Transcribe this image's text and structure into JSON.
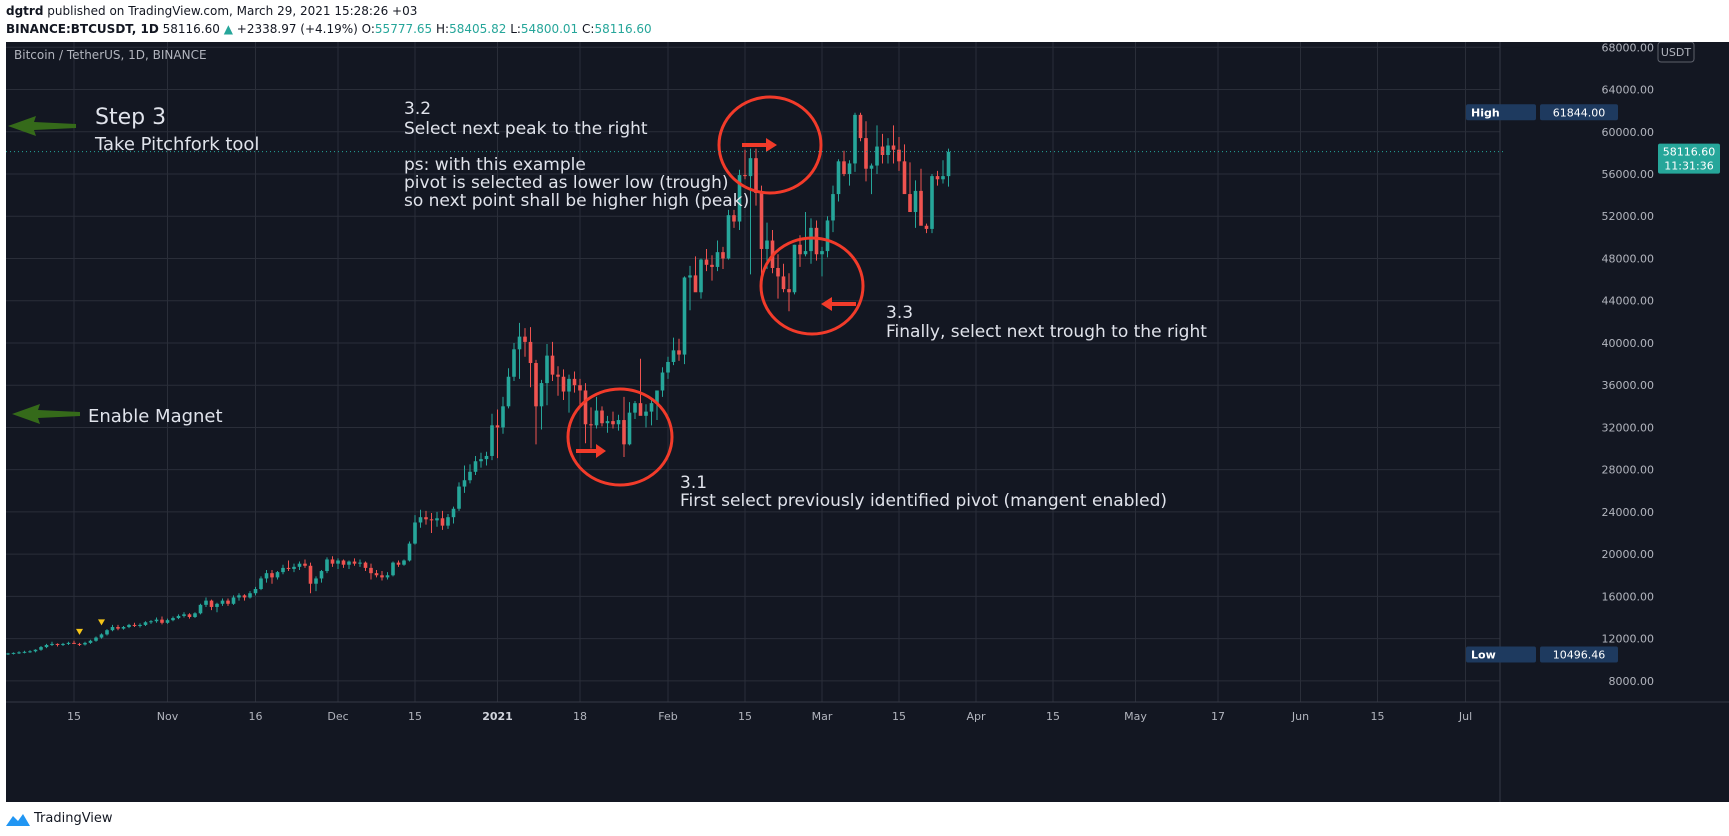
{
  "header": {
    "author": "dgtrd",
    "published": "published on TradingView.com, March 29, 2021 15:28:26 +03",
    "symbol": "BINANCE:BTCUSDT, 1D",
    "last": "58116.60",
    "change": "+2338.97 (+4.19%)",
    "o_label": "O:",
    "o": "55777.65",
    "h_label": "H:",
    "h": "58405.82",
    "l_label": "L:",
    "l": "54800.01",
    "c_label": "C:",
    "c": "58116.60"
  },
  "footer": {
    "brand": "TradingView"
  },
  "colors": {
    "up": "#26a69a",
    "down": "#ef5350",
    "background": "#131722",
    "grid": "#2a2e39",
    "annotation": "#e0e3eb",
    "circle": "#f23b2a",
    "green_arrow": "#356a1a",
    "high_badge": "#1e3a5f",
    "price_badge": "#26a69a"
  },
  "chart_data": {
    "type": "candlestick",
    "title": "Bitcoin / TetherUS, 1D, BINANCE",
    "currency": "USDT",
    "x_labels": [
      "15",
      "Nov",
      "16",
      "Dec",
      "15",
      "2021",
      "18",
      "Feb",
      "15",
      "Mar",
      "15",
      "Apr",
      "15",
      "May",
      "17",
      "Jun",
      "15",
      "Jul"
    ],
    "y_ticks": [
      8000,
      12000,
      16000,
      20000,
      24000,
      28000,
      32000,
      36000,
      40000,
      44000,
      48000,
      52000,
      56000,
      60000,
      64000,
      68000
    ],
    "ylim": [
      6000,
      68500
    ],
    "grid": true,
    "high": {
      "label": "High",
      "value": "61844.00"
    },
    "low": {
      "label": "Low",
      "value": "10496.46"
    },
    "current_price": {
      "value": "58116.60",
      "countdown": "11:31:36"
    },
    "candles_ohlc": [
      [
        10550,
        10650,
        10450,
        10600
      ],
      [
        10600,
        10700,
        10500,
        10650
      ],
      [
        10650,
        10800,
        10550,
        10700
      ],
      [
        10700,
        10850,
        10600,
        10750
      ],
      [
        10750,
        10900,
        10650,
        10800
      ],
      [
        10800,
        11000,
        10700,
        10950
      ],
      [
        10950,
        11300,
        10850,
        11200
      ],
      [
        11200,
        11500,
        11100,
        11400
      ],
      [
        11400,
        11700,
        11300,
        11500
      ],
      [
        11500,
        11550,
        11250,
        11400
      ],
      [
        11400,
        11600,
        11300,
        11500
      ],
      [
        11500,
        11700,
        11400,
        11600
      ],
      [
        11600,
        11800,
        11500,
        11500
      ],
      [
        11500,
        11600,
        11300,
        11450
      ],
      [
        11450,
        11700,
        11350,
        11600
      ],
      [
        11600,
        11900,
        11500,
        11800
      ],
      [
        11800,
        12200,
        11700,
        12100
      ],
      [
        12100,
        12500,
        12000,
        12400
      ],
      [
        12400,
        12900,
        12300,
        12800
      ],
      [
        12800,
        13300,
        12700,
        13100
      ],
      [
        13100,
        13300,
        12800,
        12950
      ],
      [
        12950,
        13200,
        12850,
        13100
      ],
      [
        13100,
        13400,
        13000,
        13300
      ],
      [
        13300,
        13500,
        13100,
        13200
      ],
      [
        13200,
        13450,
        13050,
        13300
      ],
      [
        13300,
        13650,
        13200,
        13550
      ],
      [
        13550,
        13750,
        13400,
        13650
      ],
      [
        13650,
        14000,
        13500,
        13800
      ],
      [
        13800,
        14100,
        13350,
        13500
      ],
      [
        13500,
        13900,
        13400,
        13750
      ],
      [
        13750,
        14100,
        13650,
        13950
      ],
      [
        13950,
        14300,
        13850,
        14150
      ],
      [
        14150,
        14500,
        14000,
        14300
      ],
      [
        14300,
        14400,
        13900,
        14050
      ],
      [
        14050,
        14500,
        13950,
        14400
      ],
      [
        14400,
        15300,
        14300,
        15200
      ],
      [
        15200,
        15900,
        15000,
        15600
      ],
      [
        15600,
        15700,
        14700,
        15000
      ],
      [
        15000,
        15400,
        14500,
        15300
      ],
      [
        15300,
        15800,
        15100,
        15600
      ],
      [
        15600,
        15800,
        15100,
        15300
      ],
      [
        15300,
        16100,
        15200,
        15900
      ],
      [
        15900,
        16300,
        15600,
        16100
      ],
      [
        16100,
        16200,
        15600,
        15900
      ],
      [
        15900,
        16500,
        15800,
        16300
      ],
      [
        16300,
        16900,
        16100,
        16700
      ],
      [
        16700,
        17900,
        16600,
        17700
      ],
      [
        17700,
        18500,
        17300,
        18200
      ],
      [
        18200,
        18500,
        17200,
        17800
      ],
      [
        17800,
        18400,
        17600,
        18300
      ],
      [
        18300,
        19000,
        18100,
        18700
      ],
      [
        18700,
        19400,
        18400,
        18600
      ],
      [
        18600,
        19100,
        18300,
        18800
      ],
      [
        18800,
        19300,
        18500,
        19100
      ],
      [
        19100,
        19500,
        18700,
        18900
      ],
      [
        18900,
        19200,
        16300,
        17200
      ],
      [
        17200,
        17900,
        16500,
        17700
      ],
      [
        17700,
        18500,
        17300,
        18400
      ],
      [
        18400,
        19700,
        18200,
        19500
      ],
      [
        19500,
        19800,
        18800,
        19100
      ],
      [
        19100,
        19600,
        18600,
        19400
      ],
      [
        19400,
        19500,
        18700,
        19000
      ],
      [
        19000,
        19400,
        18600,
        19300
      ],
      [
        19300,
        19600,
        18900,
        19100
      ],
      [
        19100,
        19500,
        18800,
        19200
      ],
      [
        19200,
        19300,
        18400,
        18700
      ],
      [
        18700,
        19100,
        17600,
        18200
      ],
      [
        18200,
        18500,
        17800,
        18000
      ],
      [
        18000,
        18400,
        17500,
        17800
      ],
      [
        17800,
        18300,
        17600,
        18000
      ],
      [
        18000,
        19300,
        17900,
        19200
      ],
      [
        19200,
        19400,
        18800,
        19000
      ],
      [
        19000,
        19500,
        18900,
        19400
      ],
      [
        19400,
        21200,
        19300,
        21000
      ],
      [
        21000,
        23700,
        20900,
        23000
      ],
      [
        23000,
        24200,
        22500,
        23500
      ],
      [
        23500,
        24100,
        22800,
        23300
      ],
      [
        23300,
        23900,
        22000,
        23200
      ],
      [
        23200,
        24000,
        22600,
        23400
      ],
      [
        23400,
        24100,
        22300,
        22700
      ],
      [
        22700,
        23800,
        22400,
        23500
      ],
      [
        23500,
        24500,
        22900,
        24300
      ],
      [
        24300,
        26800,
        24100,
        26400
      ],
      [
        26400,
        28400,
        25800,
        27000
      ],
      [
        27000,
        28500,
        26700,
        27800
      ],
      [
        27800,
        29300,
        27500,
        28800
      ],
      [
        28800,
        29600,
        28200,
        29000
      ],
      [
        29000,
        29700,
        28400,
        29300
      ],
      [
        29300,
        33300,
        28900,
        32200
      ],
      [
        32200,
        33700,
        29100,
        32000
      ],
      [
        32000,
        34900,
        31400,
        34000
      ],
      [
        34000,
        37600,
        33800,
        36800
      ],
      [
        36800,
        40000,
        36400,
        39400
      ],
      [
        39400,
        41900,
        36600,
        40600
      ],
      [
        40600,
        41400,
        38700,
        40100
      ],
      [
        40100,
        41500,
        35800,
        38100
      ],
      [
        38100,
        38400,
        30400,
        34000
      ],
      [
        34000,
        36500,
        31800,
        36200
      ],
      [
        36200,
        39900,
        34100,
        38800
      ],
      [
        38800,
        40100,
        36400,
        37000
      ],
      [
        37000,
        37800,
        35000,
        36800
      ],
      [
        36800,
        37500,
        34600,
        35400
      ],
      [
        35400,
        37000,
        33400,
        36600
      ],
      [
        36600,
        37300,
        35300,
        36000
      ],
      [
        36000,
        36600,
        33900,
        35500
      ],
      [
        35500,
        36200,
        30500,
        32300
      ],
      [
        32300,
        33900,
        30000,
        32200
      ],
      [
        32200,
        34900,
        31900,
        33600
      ],
      [
        33600,
        34000,
        32100,
        32400
      ],
      [
        32400,
        33100,
        31500,
        32600
      ],
      [
        32600,
        33500,
        31900,
        32300
      ],
      [
        32300,
        33200,
        31700,
        32700
      ],
      [
        32700,
        34900,
        29200,
        30400
      ],
      [
        30400,
        34400,
        30300,
        33400
      ],
      [
        33400,
        34500,
        32800,
        34300
      ],
      [
        34300,
        38500,
        33300,
        33100
      ],
      [
        33100,
        34200,
        32000,
        33500
      ],
      [
        33500,
        34800,
        32200,
        34300
      ],
      [
        34300,
        35400,
        32700,
        35500
      ],
      [
        35500,
        37700,
        34900,
        37200
      ],
      [
        37200,
        38700,
        36600,
        38200
      ],
      [
        38200,
        40500,
        37900,
        39300
      ],
      [
        39300,
        40400,
        38300,
        38900
      ],
      [
        38900,
        46300,
        38000,
        46200
      ],
      [
        46200,
        47300,
        43100,
        46400
      ],
      [
        46400,
        48200,
        45100,
        44800
      ],
      [
        44800,
        48000,
        44200,
        47900
      ],
      [
        47900,
        48900,
        46800,
        47400
      ],
      [
        47400,
        48300,
        45900,
        47200
      ],
      [
        47200,
        49700,
        46800,
        48600
      ],
      [
        48600,
        49100,
        47000,
        48000
      ],
      [
        48000,
        52600,
        47900,
        52100
      ],
      [
        52100,
        52600,
        50900,
        51500
      ],
      [
        51500,
        56400,
        50700,
        55900
      ],
      [
        55900,
        58300,
        55500,
        55800
      ],
      [
        55800,
        58400,
        46500,
        57500
      ],
      [
        57500,
        58400,
        53000,
        54200
      ],
      [
        54200,
        54900,
        45000,
        48900
      ],
      [
        48900,
        51400,
        47000,
        49700
      ],
      [
        49700,
        50700,
        46600,
        47100
      ],
      [
        47100,
        48400,
        44200,
        46300
      ],
      [
        46300,
        47500,
        44800,
        45100
      ],
      [
        45100,
        46600,
        43000,
        44800
      ],
      [
        44800,
        49300,
        44600,
        49300
      ],
      [
        49300,
        50200,
        47200,
        48400
      ],
      [
        48400,
        52400,
        48200,
        48700
      ],
      [
        48700,
        51800,
        47500,
        50900
      ],
      [
        50900,
        51600,
        47800,
        48400
      ],
      [
        48400,
        49100,
        46300,
        48700
      ],
      [
        48700,
        52000,
        48100,
        51600
      ],
      [
        51600,
        54900,
        50500,
        54100
      ],
      [
        54100,
        57400,
        53400,
        57200
      ],
      [
        57200,
        58200,
        55800,
        56000
      ],
      [
        56000,
        57300,
        54900,
        57000
      ],
      [
        57000,
        61800,
        56200,
        61600
      ],
      [
        61600,
        61800,
        59100,
        59400
      ],
      [
        59400,
        61000,
        55300,
        56500
      ],
      [
        56500,
        57000,
        54100,
        56800
      ],
      [
        56800,
        60600,
        56000,
        58600
      ],
      [
        58600,
        59800,
        57000,
        57800
      ],
      [
        57800,
        59400,
        57000,
        58700
      ],
      [
        58700,
        60600,
        57000,
        58300
      ],
      [
        58300,
        59500,
        56300,
        57200
      ],
      [
        57200,
        58800,
        55100,
        54100
      ],
      [
        54100,
        57100,
        53400,
        52400
      ],
      [
        52400,
        55400,
        50900,
        54400
      ],
      [
        54400,
        56500,
        51700,
        51100
      ],
      [
        51100,
        51300,
        50400,
        50800
      ],
      [
        50800,
        56000,
        50400,
        55800
      ],
      [
        55800,
        56300,
        54900,
        55500
      ],
      [
        55500,
        57300,
        55100,
        55800
      ],
      [
        55800,
        58400,
        54800,
        58100
      ]
    ],
    "markers": [
      {
        "type": "triangle-down",
        "index": 13
      },
      {
        "type": "triangle-down",
        "index": 17
      }
    ]
  },
  "annotations": {
    "step3_title": "Step 3",
    "step3_sub": "Take Pitchfork tool",
    "magnet": "Enable Magnet",
    "s32_title": "3.2",
    "s32_line1": "Select next peak to the right",
    "s32_ps1": "ps: with this example",
    "s32_ps2": "pivot is selected as lower low (trough)",
    "s32_ps3": "so next point shall be higher high (peak)",
    "s31_title": "3.1",
    "s31_line1": "First select previously identified pivot (mangent enabled)",
    "s33_title": "3.3",
    "s33_line1": "Finally, select next trough to the right"
  }
}
